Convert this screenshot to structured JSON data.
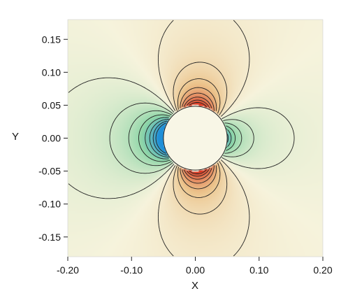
{
  "chart_data": {
    "type": "heatmap",
    "title": "",
    "xlabel": "X",
    "ylabel": "Y",
    "xlim": [
      -0.2,
      0.2
    ],
    "ylim": [
      -0.18,
      0.18
    ],
    "x_ticks": [
      "-0.20",
      "-0.10",
      "0.00",
      "0.10",
      "0.20"
    ],
    "x_tick_values": [
      -0.2,
      -0.1,
      0.0,
      0.1,
      0.2
    ],
    "y_ticks": [
      "0.15",
      "0.10",
      "0.05",
      "0.00",
      "-0.05",
      "-0.10",
      "-0.15"
    ],
    "y_tick_values": [
      0.15,
      0.1,
      0.05,
      0.0,
      -0.05,
      -0.1,
      -0.15
    ],
    "obstacle": {
      "shape": "circle",
      "center": [
        0.0,
        0.0
      ],
      "radius": 0.05
    },
    "contour_levels": 16,
    "colormap": {
      "negative": "#1f8fd8",
      "mid_negative": "#8fd6a8",
      "zero": "#f6f3dc",
      "positive": "#d8321e"
    },
    "grid": false
  }
}
